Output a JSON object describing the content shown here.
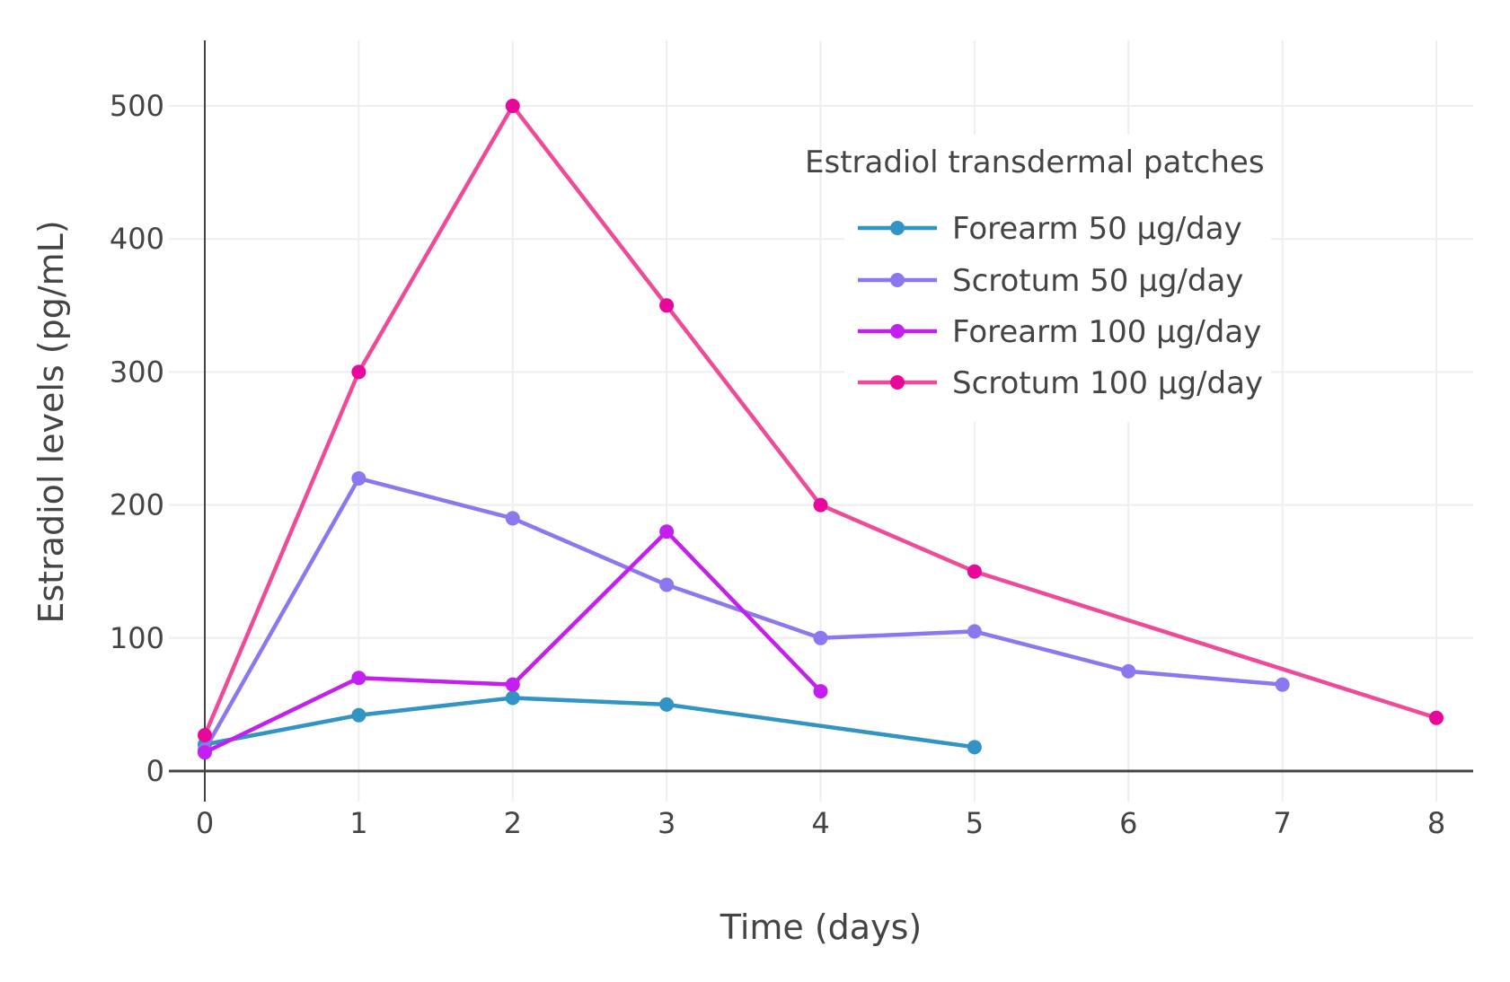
{
  "chart_data": {
    "type": "line",
    "xlabel": "Time (days)",
    "ylabel": "Estradiol levels (pg/mL)",
    "xlim": [
      -0.25,
      8.25
    ],
    "ylim": [
      -30,
      550
    ],
    "xticks": [
      0,
      1,
      2,
      3,
      4,
      5,
      6,
      7,
      8
    ],
    "yticks": [
      0,
      100,
      200,
      300,
      400,
      500
    ],
    "grid": true,
    "legend": {
      "title": "Estradiol transdermal patches",
      "placement": "top-right"
    },
    "series": [
      {
        "name": "Forearm 50 μg/day",
        "color": "#3194c5",
        "marker_color": "#3194c5",
        "x": [
          0,
          1,
          2,
          3,
          5
        ],
        "y": [
          20,
          42,
          55,
          50,
          18
        ]
      },
      {
        "name": "Scrotum 50 μg/day",
        "color": "#8c77ee",
        "marker_color": "#8c77ee",
        "x": [
          0,
          1,
          2,
          3,
          4,
          5,
          6,
          7
        ],
        "y": [
          16,
          220,
          190,
          140,
          100,
          105,
          75,
          65
        ]
      },
      {
        "name": "Forearm 100 μg/day",
        "color": "#c31fee",
        "marker_color": "#c31fee",
        "x": [
          0,
          1,
          2,
          3,
          4
        ],
        "y": [
          14,
          70,
          65,
          180,
          60
        ]
      },
      {
        "name": "Scrotum 100 μg/day",
        "color": "#ef4a97",
        "marker_color": "#e7079b",
        "x": [
          0,
          1,
          2,
          3,
          4,
          5,
          8
        ],
        "y": [
          27,
          300,
          500,
          350,
          200,
          150,
          40
        ]
      }
    ]
  }
}
